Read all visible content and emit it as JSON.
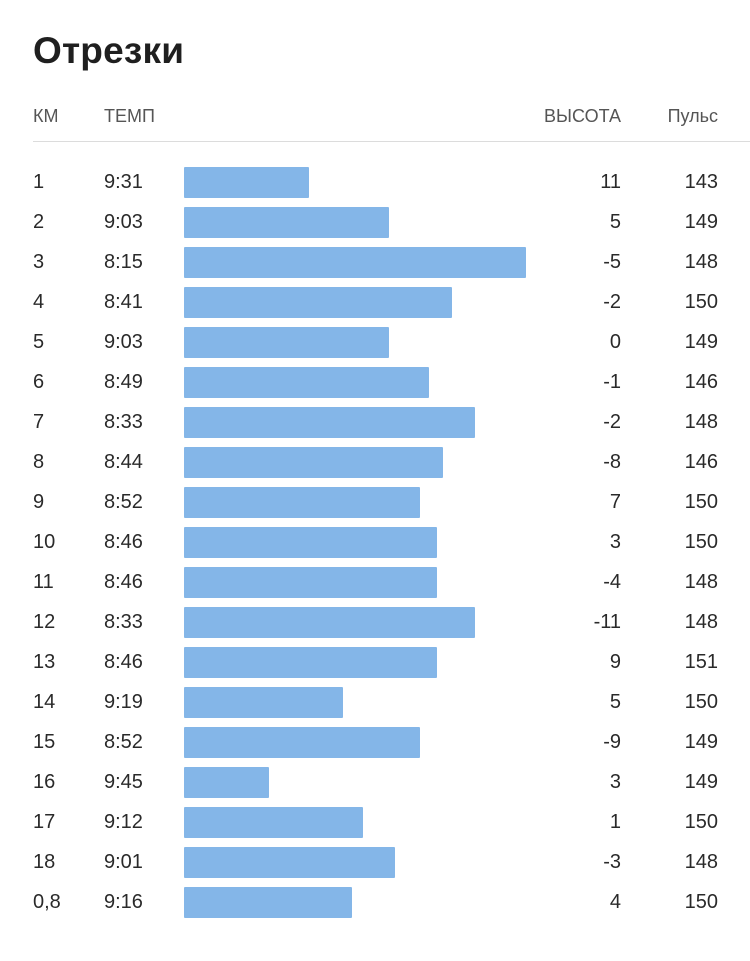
{
  "title": "Отрезки",
  "columns": {
    "km": "КМ",
    "pace": "ТЕМП",
    "elevation": "ВЫСОТА",
    "heart_rate": "Пульс"
  },
  "colors": {
    "bar": "#84b6e8"
  },
  "splits": [
    {
      "km": "1",
      "pace": "9:31",
      "pace_seconds": 571,
      "elevation": "11",
      "heart_rate": "143"
    },
    {
      "km": "2",
      "pace": "9:03",
      "pace_seconds": 543,
      "elevation": "5",
      "heart_rate": "149"
    },
    {
      "km": "3",
      "pace": "8:15",
      "pace_seconds": 495,
      "elevation": "-5",
      "heart_rate": "148"
    },
    {
      "km": "4",
      "pace": "8:41",
      "pace_seconds": 521,
      "elevation": "-2",
      "heart_rate": "150"
    },
    {
      "km": "5",
      "pace": "9:03",
      "pace_seconds": 543,
      "elevation": "0",
      "heart_rate": "149"
    },
    {
      "km": "6",
      "pace": "8:49",
      "pace_seconds": 529,
      "elevation": "-1",
      "heart_rate": "146"
    },
    {
      "km": "7",
      "pace": "8:33",
      "pace_seconds": 513,
      "elevation": "-2",
      "heart_rate": "148"
    },
    {
      "km": "8",
      "pace": "8:44",
      "pace_seconds": 524,
      "elevation": "-8",
      "heart_rate": "146"
    },
    {
      "km": "9",
      "pace": "8:52",
      "pace_seconds": 532,
      "elevation": "7",
      "heart_rate": "150"
    },
    {
      "km": "10",
      "pace": "8:46",
      "pace_seconds": 526,
      "elevation": "3",
      "heart_rate": "150"
    },
    {
      "km": "11",
      "pace": "8:46",
      "pace_seconds": 526,
      "elevation": "-4",
      "heart_rate": "148"
    },
    {
      "km": "12",
      "pace": "8:33",
      "pace_seconds": 513,
      "elevation": "-11",
      "heart_rate": "148"
    },
    {
      "km": "13",
      "pace": "8:46",
      "pace_seconds": 526,
      "elevation": "9",
      "heart_rate": "151"
    },
    {
      "km": "14",
      "pace": "9:19",
      "pace_seconds": 559,
      "elevation": "5",
      "heart_rate": "150"
    },
    {
      "km": "15",
      "pace": "8:52",
      "pace_seconds": 532,
      "elevation": "-9",
      "heart_rate": "149"
    },
    {
      "km": "16",
      "pace": "9:45",
      "pace_seconds": 585,
      "elevation": "3",
      "heart_rate": "149"
    },
    {
      "km": "17",
      "pace": "9:12",
      "pace_seconds": 552,
      "elevation": "1",
      "heart_rate": "150"
    },
    {
      "km": "18",
      "pace": "9:01",
      "pace_seconds": 541,
      "elevation": "-3",
      "heart_rate": "148"
    },
    {
      "km": "0,8",
      "pace": "9:16",
      "pace_seconds": 556,
      "elevation": "4",
      "heart_rate": "150"
    }
  ]
}
